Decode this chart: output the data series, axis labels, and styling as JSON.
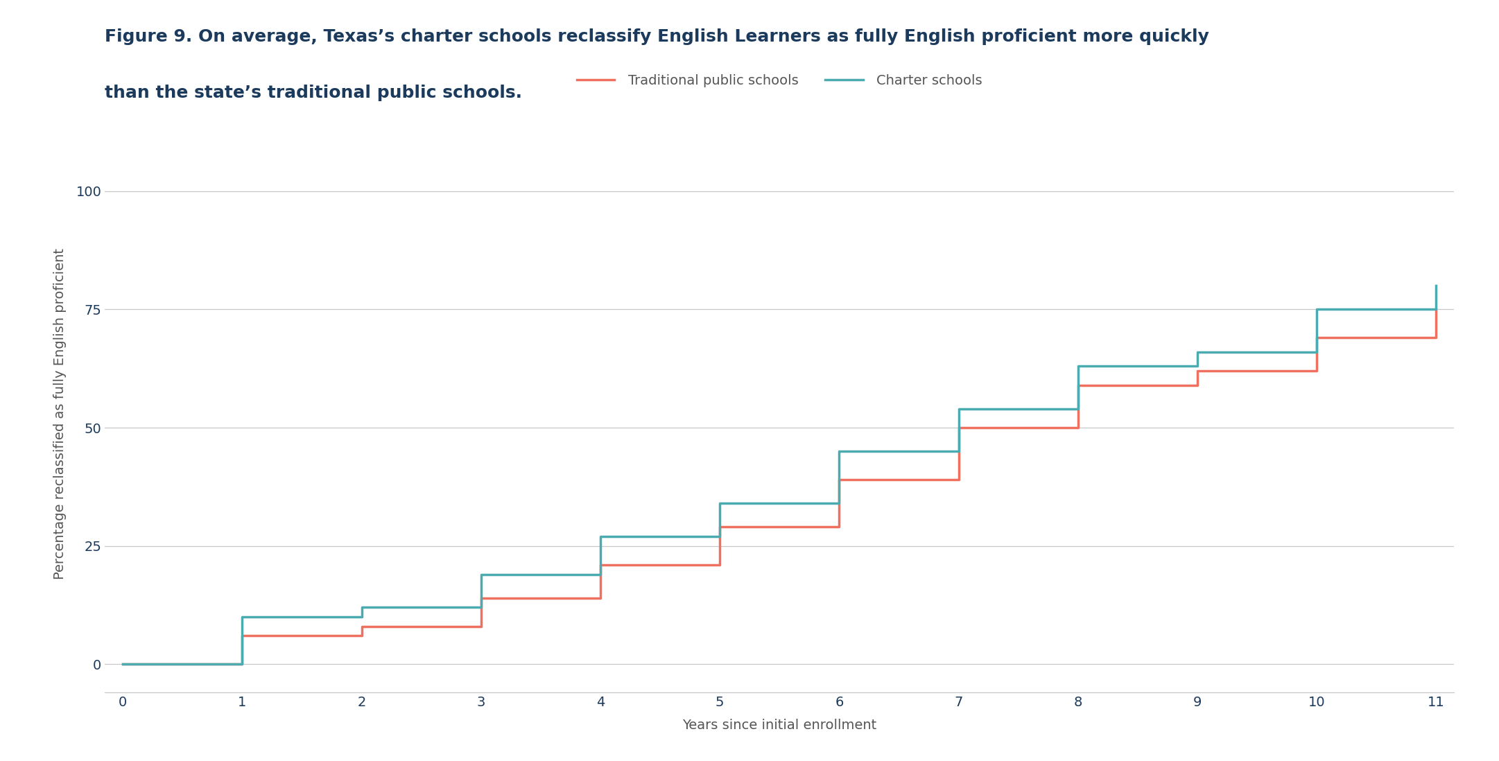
{
  "title_line1": "Figure 9. On average, Texas’s charter schools reclassify English Learners as fully English proficient more quickly",
  "title_line2": "than the state’s traditional public schools.",
  "xlabel": "Years since initial enrollment",
  "ylabel": "Percentage reclassified as fully English proficient",
  "trad_x": [
    0,
    1,
    2,
    3,
    4,
    5,
    6,
    7,
    8,
    9,
    10,
    11
  ],
  "trad_y": [
    0,
    6,
    8,
    14,
    21,
    29,
    39,
    50,
    59,
    62,
    69,
    75
  ],
  "charter_x": [
    0,
    1,
    2,
    3,
    4,
    5,
    6,
    7,
    8,
    9,
    10,
    11
  ],
  "charter_y": [
    0,
    10,
    12,
    19,
    27,
    34,
    45,
    54,
    63,
    66,
    75,
    80
  ],
  "traditional_color": "#F07060",
  "charter_color": "#4AABB0",
  "background_color": "#FFFFFF",
  "grid_color": "#C8C8C8",
  "title_color": "#1B3A5C",
  "label_color": "#555555",
  "legend_label_traditional": "Traditional public schools",
  "legend_label_charter": "Charter schools",
  "xlim": [
    -0.15,
    11.15
  ],
  "ylim": [
    -6,
    112
  ],
  "yticks": [
    0,
    25,
    50,
    75,
    100
  ],
  "xticks": [
    0,
    1,
    2,
    3,
    4,
    5,
    6,
    7,
    8,
    9,
    10,
    11
  ],
  "line_width": 2.5,
  "font_size_title": 18,
  "font_size_axis_label": 14,
  "font_size_tick": 14,
  "font_size_legend": 14
}
